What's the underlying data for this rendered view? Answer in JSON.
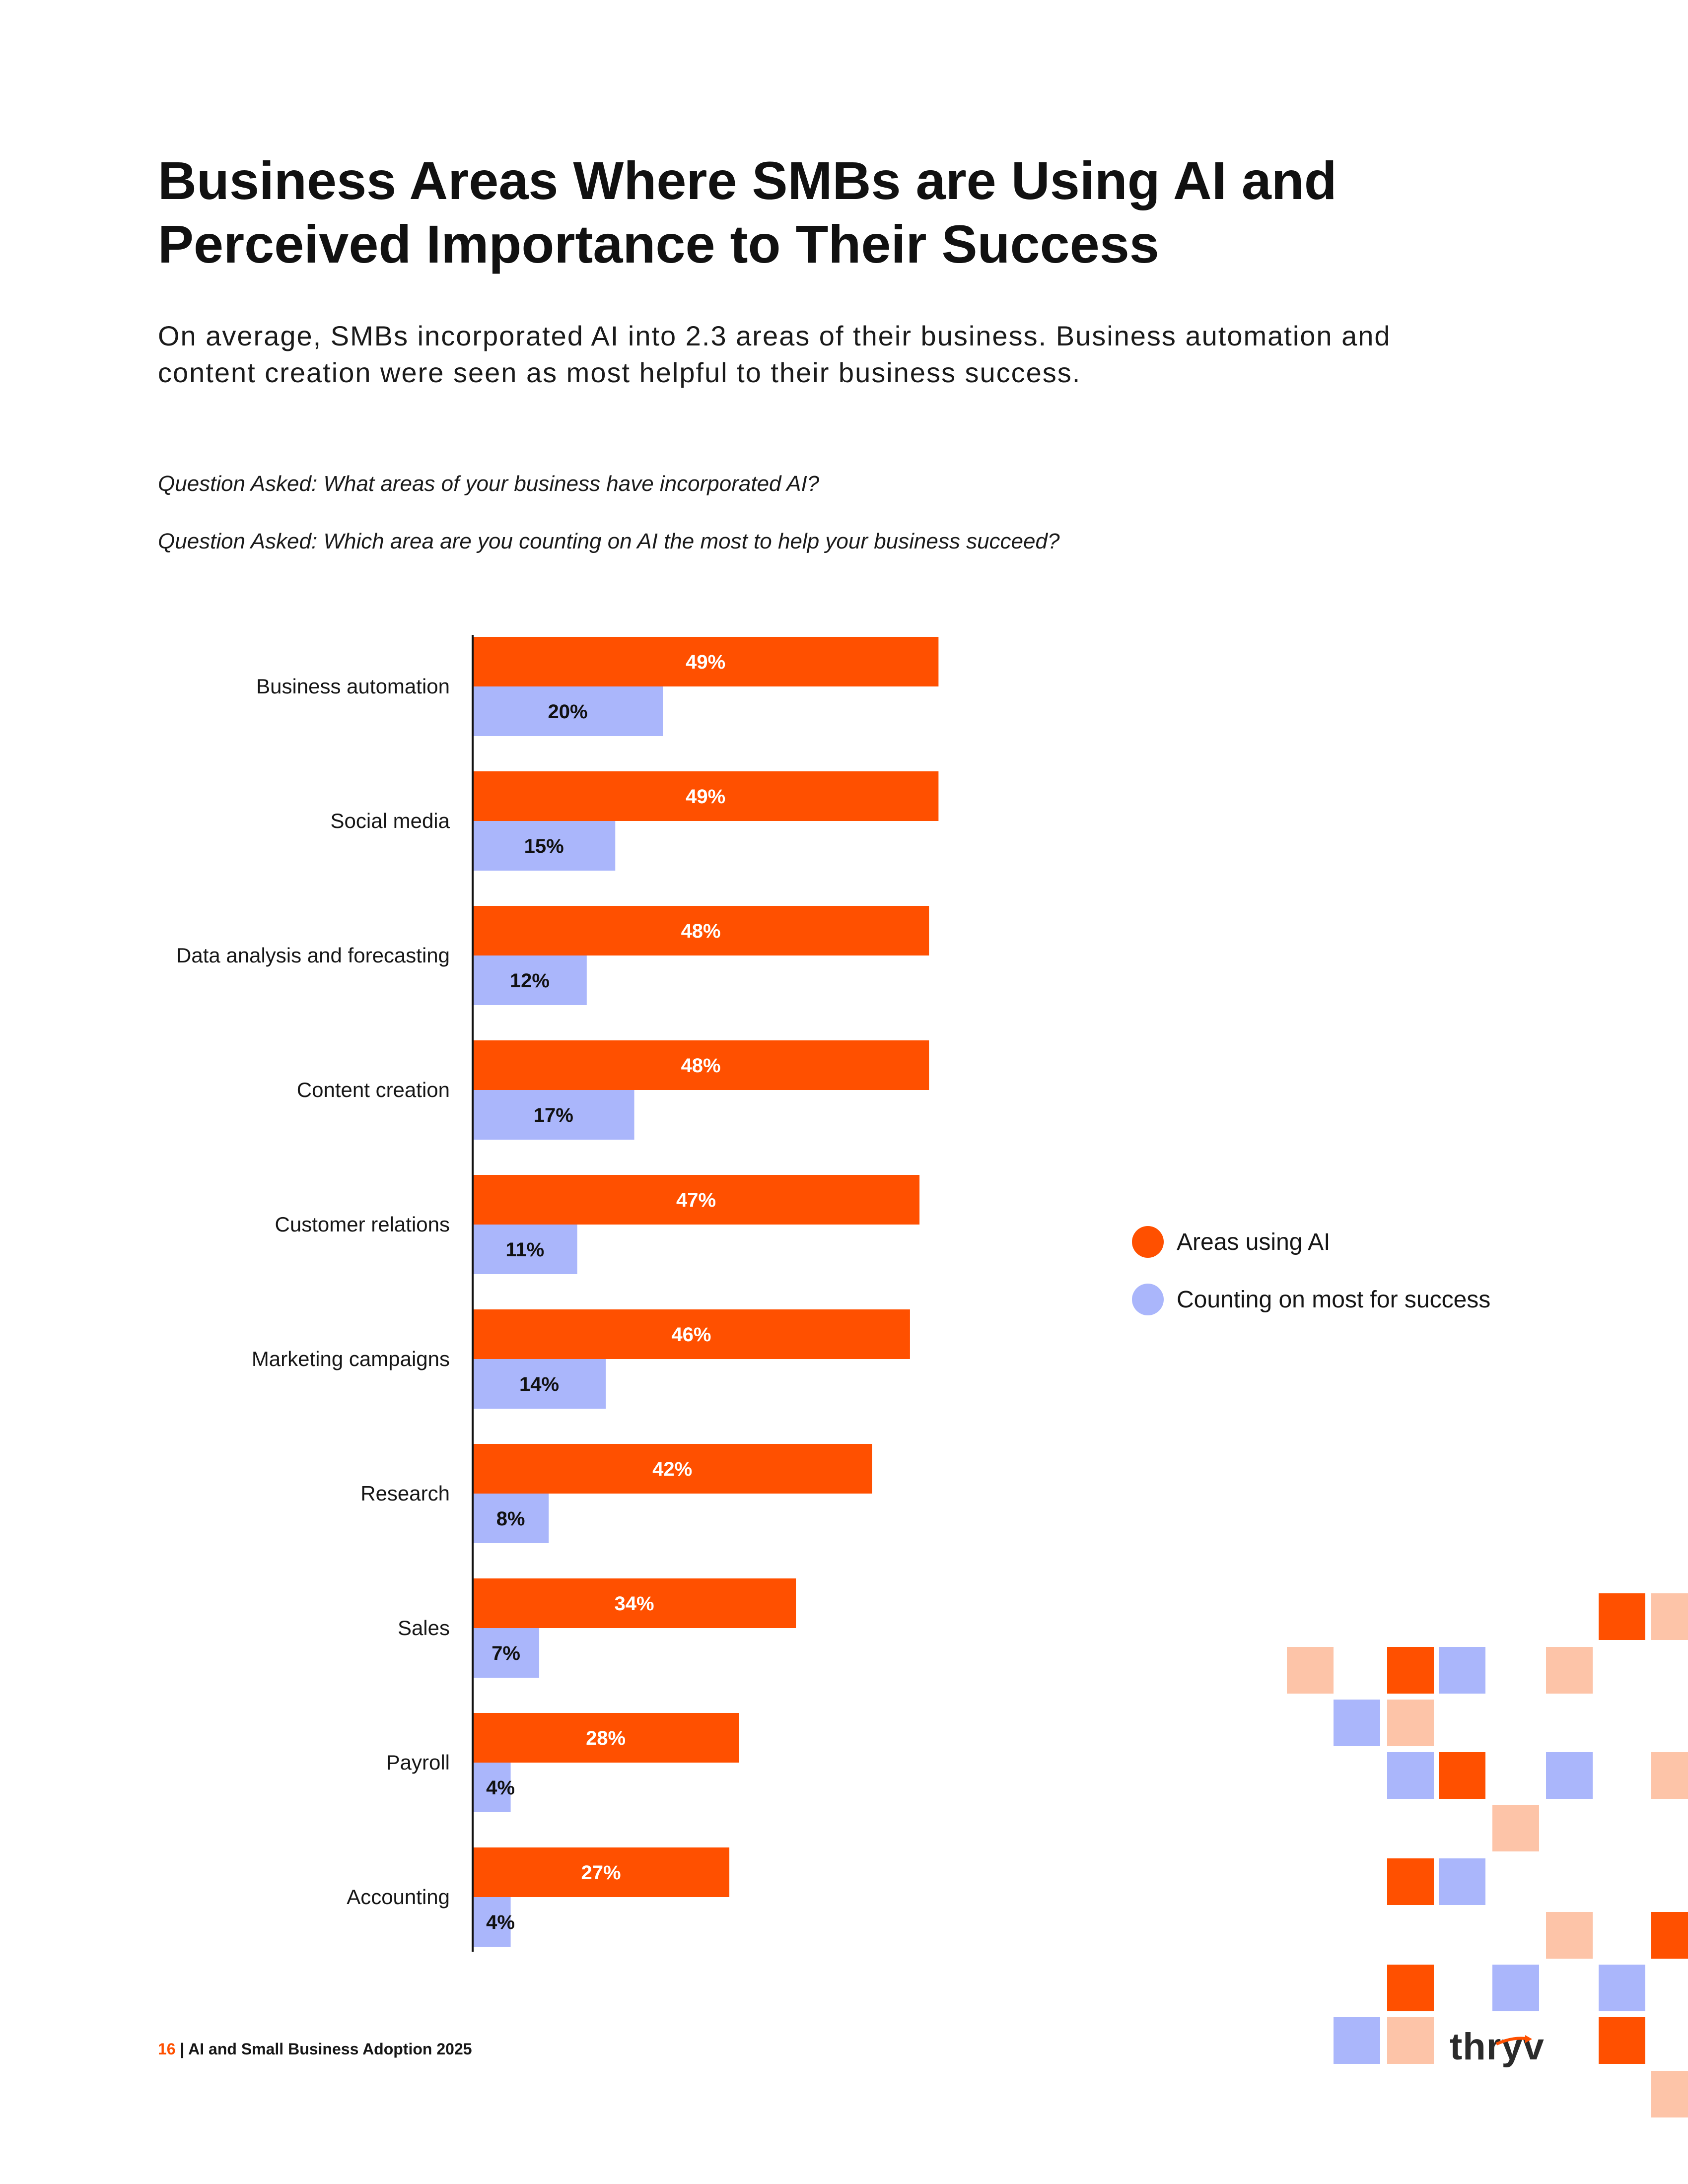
{
  "title_line1": "Business Areas Where SMBs are Using AI and",
  "title_line2": "Perceived Importance to Their Success",
  "subtitle": "On average, SMBs incorporated AI into 2.3 areas of their business. Business automation and content creation were seen as most helpful to their business success.",
  "question1": "Question Asked: What areas of your business have incorporated AI?",
  "question2": "Question Asked: Which area are you counting on AI the most to help your business succeed?",
  "colors": {
    "orange": "#ff5000",
    "lavender": "#aab6fb",
    "peach": "#fdc4a8"
  },
  "chart_data": {
    "type": "bar",
    "orientation": "horizontal",
    "categories": [
      "Business automation",
      "Social media",
      "Data analysis and forecasting",
      "Content creation",
      "Customer relations",
      "Marketing campaigns",
      "Research",
      "Sales",
      "Payroll",
      "Accounting"
    ],
    "series": [
      {
        "name": "Areas using AI",
        "color": "#ff5000",
        "values": [
          49,
          49,
          48,
          48,
          47,
          46,
          42,
          34,
          28,
          27
        ],
        "labels": [
          "49%",
          "49%",
          "48%",
          "48%",
          "47%",
          "46%",
          "42%",
          "34%",
          "28%",
          "27%"
        ]
      },
      {
        "name": "Counting on most for success",
        "color": "#aab6fb",
        "values": [
          20,
          15,
          12,
          17,
          11,
          14,
          8,
          7,
          4,
          4
        ],
        "labels": [
          "20%",
          "15%",
          "12%",
          "17%",
          "11%",
          "14%",
          "8%",
          "7%",
          "4%",
          "4%"
        ]
      }
    ],
    "xlim": [
      0,
      100
    ],
    "legend_position": "right",
    "grid": false
  },
  "legend": {
    "item1": "Areas using AI",
    "item2": "Counting on most for success"
  },
  "footer": {
    "page_number": "16",
    "separator": " | ",
    "report_title": "AI and Small Business Adoption 2025"
  },
  "logo_text": "thryv"
}
